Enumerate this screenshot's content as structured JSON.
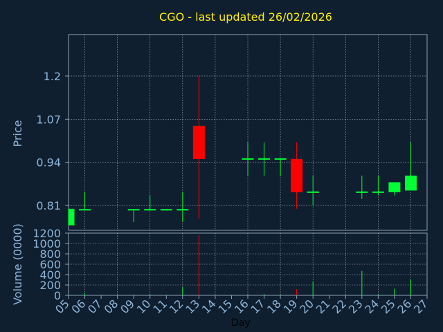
{
  "chart_data": [
    {
      "type": "candlestick",
      "title": "CGO - last updated 26/02/2026",
      "ylabel": "Price",
      "xlabel": "Day",
      "yticks": [
        "1.2",
        "1.07",
        "0.94",
        "0.81"
      ],
      "ytick_values": [
        1.2,
        1.07,
        0.94,
        0.81
      ],
      "ylim": [
        0.735,
        1.325
      ],
      "xlim": [
        5,
        27
      ],
      "x_tick_labels": [
        "05",
        "06",
        "07",
        "08",
        "09",
        "10",
        "11",
        "12",
        "13",
        "14",
        "15",
        "16",
        "17",
        "18",
        "19",
        "20",
        "21",
        "22",
        "23",
        "24",
        "25",
        "26",
        "27"
      ],
      "grid": true,
      "colors": {
        "up": "#00ff33",
        "down": "#ff0000",
        "grid": "#ffffff",
        "background": "#0f1f30"
      },
      "candles": [
        {
          "day": 5.0,
          "open": 0.75,
          "high": 0.8,
          "low": 0.75,
          "close": 0.8
        },
        {
          "day": 6.0,
          "open": 0.797,
          "high": 0.85,
          "low": 0.797,
          "close": 0.797
        },
        {
          "day": 9.0,
          "open": 0.797,
          "high": 0.797,
          "low": 0.76,
          "close": 0.797
        },
        {
          "day": 10.0,
          "open": 0.797,
          "high": 0.84,
          "low": 0.797,
          "close": 0.797
        },
        {
          "day": 11.0,
          "open": 0.797,
          "high": 0.797,
          "low": 0.797,
          "close": 0.797
        },
        {
          "day": 12.0,
          "open": 0.797,
          "high": 0.85,
          "low": 0.76,
          "close": 0.797
        },
        {
          "day": 13.0,
          "open": 1.05,
          "high": 1.2,
          "low": 0.77,
          "close": 0.95
        },
        {
          "day": 16.0,
          "open": 0.95,
          "high": 1.0,
          "low": 0.9,
          "close": 0.95
        },
        {
          "day": 17.0,
          "open": 0.95,
          "high": 1.0,
          "low": 0.9,
          "close": 0.95
        },
        {
          "day": 18.0,
          "open": 0.95,
          "high": 0.95,
          "low": 0.9,
          "close": 0.95
        },
        {
          "day": 19.0,
          "open": 0.95,
          "high": 1.0,
          "low": 0.8,
          "close": 0.85
        },
        {
          "day": 20.0,
          "open": 0.85,
          "high": 0.9,
          "low": 0.81,
          "close": 0.85
        },
        {
          "day": 23.0,
          "open": 0.85,
          "high": 0.9,
          "low": 0.83,
          "close": 0.85
        },
        {
          "day": 24.0,
          "open": 0.85,
          "high": 0.9,
          "low": 0.84,
          "close": 0.85
        },
        {
          "day": 25.0,
          "open": 0.85,
          "high": 0.88,
          "low": 0.84,
          "close": 0.88
        },
        {
          "day": 26.0,
          "open": 0.855,
          "high": 1.0,
          "low": 0.855,
          "close": 0.9
        }
      ]
    },
    {
      "type": "bar",
      "ylabel": "Volume (0000)",
      "yticks": [
        "1200",
        "1000",
        "800",
        "600",
        "400",
        "200",
        "0"
      ],
      "ytick_values": [
        1200,
        1000,
        800,
        600,
        400,
        200,
        0
      ],
      "ylim": [
        0,
        1200
      ],
      "grid": true,
      "bars": [
        {
          "day": 5.0,
          "value": 10,
          "color": "#00ff33"
        },
        {
          "day": 6.0,
          "value": 40,
          "color": "#00ff33"
        },
        {
          "day": 9.0,
          "value": 15,
          "color": "#00ff33"
        },
        {
          "day": 10.0,
          "value": 25,
          "color": "#00ff33"
        },
        {
          "day": 11.0,
          "value": 10,
          "color": "#00ff33"
        },
        {
          "day": 12.0,
          "value": 160,
          "color": "#00ff33"
        },
        {
          "day": 13.0,
          "value": 1160,
          "color": "#ff0000"
        },
        {
          "day": 16.0,
          "value": 20,
          "color": "#00ff33"
        },
        {
          "day": 17.0,
          "value": 25,
          "color": "#00ff33"
        },
        {
          "day": 18.0,
          "value": 15,
          "color": "#00ff33"
        },
        {
          "day": 19.0,
          "value": 120,
          "color": "#ff0000"
        },
        {
          "day": 20.0,
          "value": 270,
          "color": "#00ff33"
        },
        {
          "day": 23.0,
          "value": 470,
          "color": "#00ff33"
        },
        {
          "day": 24.0,
          "value": 20,
          "color": "#00ff33"
        },
        {
          "day": 25.0,
          "value": 130,
          "color": "#00ff33"
        },
        {
          "day": 26.0,
          "value": 310,
          "color": "#00ff33"
        }
      ]
    }
  ]
}
